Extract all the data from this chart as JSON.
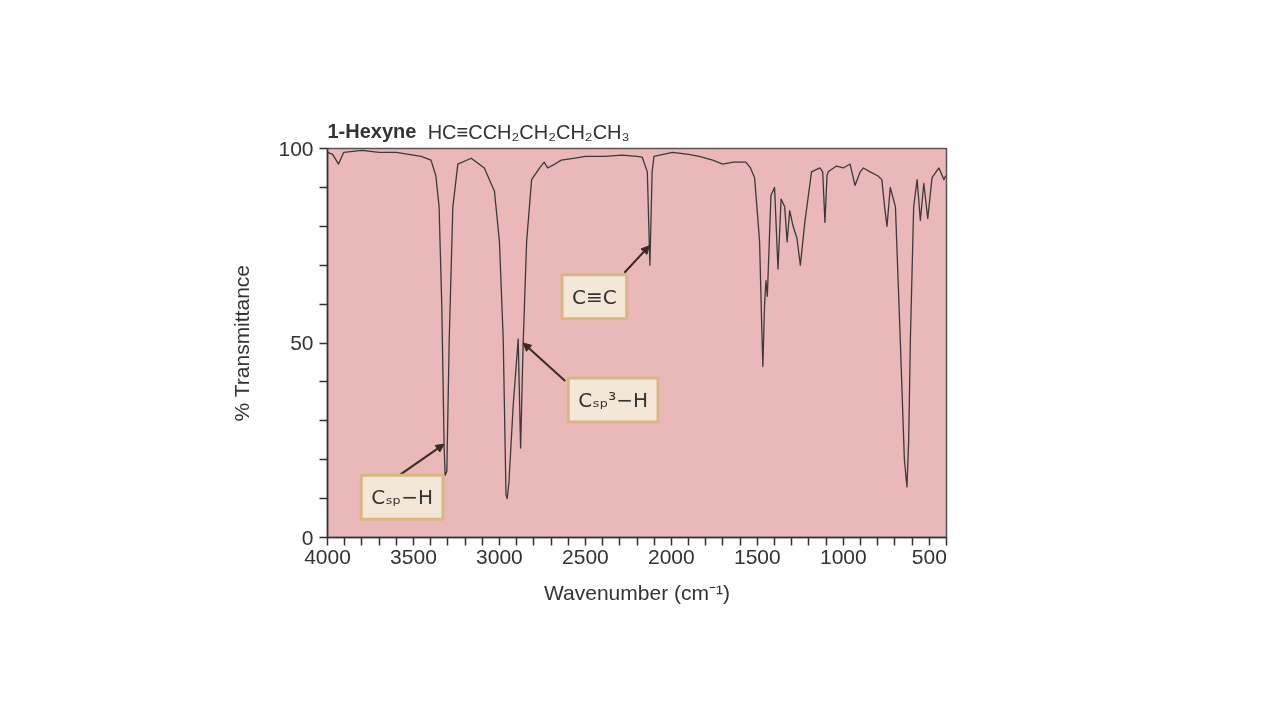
{
  "chart_data": {
    "type": "line",
    "title": "1-Hexyne",
    "subtitle": "HC≡CCH₂CH₂CH₂CH₃",
    "xlabel": "Wavenumber (cm⁻¹)",
    "ylabel": "% Transmittance",
    "x": [
      4000,
      3970,
      3936,
      3906,
      3800,
      3700,
      3600,
      3456,
      3398,
      3370,
      3351,
      3335,
      3322,
      3316,
      3306,
      3292,
      3271,
      3242,
      3164,
      3088,
      3029,
      3000,
      2978,
      2962,
      2955,
      2945,
      2920,
      2891,
      2877,
      2862,
      2842,
      2813,
      2766,
      2740,
      2720,
      2678,
      2640,
      2561,
      2500,
      2386,
      2287,
      2200,
      2170,
      2140,
      2125,
      2112,
      2101,
      1994,
      1900,
      1838,
      1760,
      1702,
      1640,
      1567,
      1540,
      1516,
      1487,
      1475,
      1468,
      1458,
      1450,
      1442,
      1421,
      1400,
      1380,
      1362,
      1341,
      1327,
      1312,
      1292,
      1270,
      1250,
      1224,
      1185,
      1136,
      1120,
      1107,
      1095,
      1088,
      1040,
      1000,
      961,
      932,
      902,
      883,
      844,
      800,
      776,
      760,
      746,
      727,
      697,
      669,
      645,
      630,
      620,
      610,
      591,
      571,
      552,
      532,
      509,
      484,
      444,
      415,
      405
    ],
    "series": [
      {
        "color": "#3a3a3a",
        "values": [
          99,
          98.5,
          96,
          99,
          99.5,
          99,
          99,
          98,
          97,
          93,
          85,
          59,
          24,
          16,
          17,
          51,
          85,
          96,
          97.5,
          95,
          89,
          76,
          51,
          11,
          10,
          14,
          34,
          51,
          23,
          50,
          76,
          92,
          95,
          96.5,
          95,
          96,
          97,
          97.5,
          98,
          98,
          98.3,
          98,
          97.8,
          94,
          70,
          94,
          98,
          99,
          98.5,
          98,
          97,
          96,
          96.5,
          96.5,
          95,
          92.5,
          76,
          55,
          44,
          60,
          66,
          62,
          88,
          90,
          69,
          87,
          85,
          76,
          84,
          80,
          77,
          70,
          81,
          94,
          95,
          94,
          81,
          93,
          94,
          95.5,
          95,
          96,
          90.5,
          94,
          95,
          94,
          93,
          92,
          85,
          80,
          90,
          85,
          51,
          20,
          13,
          25,
          51,
          85,
          92,
          81.5,
          91,
          82,
          92.5,
          95,
          92,
          93
        ]
      }
    ],
    "xlim": [
      4000,
      400
    ],
    "ylim": [
      0,
      100
    ],
    "xticks": [
      4000,
      {
        "value": 3900,
        "label": null
      },
      {
        "value": 3800,
        "label": null
      },
      {
        "value": 3700,
        "label": null
      },
      {
        "value": 3600,
        "label": null
      },
      3500,
      {
        "value": 3400,
        "label": null
      },
      {
        "value": 3300,
        "label": null
      },
      {
        "value": 3200,
        "label": null
      },
      {
        "value": 3100,
        "label": null
      },
      3000,
      {
        "value": 2900,
        "label": null
      },
      {
        "value": 2800,
        "label": null
      },
      {
        "value": 2700,
        "label": null
      },
      {
        "value": 2600,
        "label": null
      },
      2500,
      {
        "value": 2400,
        "label": null
      },
      {
        "value": 2300,
        "label": null
      },
      {
        "value": 2200,
        "label": null
      },
      {
        "value": 2100,
        "label": null
      },
      2000,
      {
        "value": 1900,
        "label": null
      },
      {
        "value": 1800,
        "label": null
      },
      {
        "value": 1700,
        "label": null
      },
      {
        "value": 1600,
        "label": null
      },
      1500,
      {
        "value": 1400,
        "label": null
      },
      {
        "value": 1300,
        "label": null
      },
      {
        "value": 1200,
        "label": null
      },
      {
        "value": 1100,
        "label": null
      },
      1000,
      {
        "value": 900,
        "label": null
      },
      {
        "value": 800,
        "label": null
      },
      {
        "value": 700,
        "label": null
      },
      {
        "value": 600,
        "label": null
      },
      500,
      {
        "value": 400,
        "label": null
      }
    ],
    "yticks": [
      0,
      {
        "value": 10,
        "label": null
      },
      {
        "value": 20,
        "label": null
      },
      {
        "value": 30,
        "label": null
      },
      {
        "value": 40,
        "label": null
      },
      50,
      {
        "value": 60,
        "label": null
      },
      {
        "value": 70,
        "label": null
      },
      {
        "value": 80,
        "label": null
      },
      {
        "value": 90,
        "label": null
      },
      100
    ],
    "line_style": "solid",
    "annotations": [
      {
        "text": "Cₛₚ−H",
        "x": 3322,
        "y": 24
      },
      {
        "text": "Cₛₚ³−H",
        "x": 2862,
        "y": 50
      },
      {
        "text": "C≡C",
        "x": 2128,
        "y": 75
      }
    ]
  }
}
